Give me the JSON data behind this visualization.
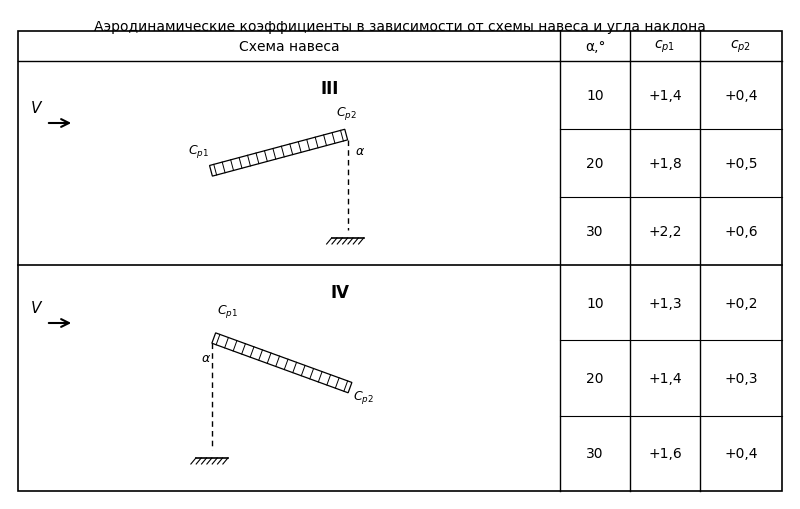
{
  "title": "Аэродинамические коэффициенты в зависимости от схемы навеса и угла наклона",
  "header": [
    "Схема навеса",
    "α,°",
    "c_p1",
    "c_p2"
  ],
  "section1_label": "III",
  "section1_rows": [
    [
      "10",
      "+1,4",
      "+0,4"
    ],
    [
      "20",
      "+1,8",
      "+0,5"
    ],
    [
      "30",
      "+2,2",
      "+0,6"
    ]
  ],
  "section2_label": "IV",
  "section2_rows": [
    [
      "10",
      "+1,3",
      "+0,2"
    ],
    [
      "20",
      "+1,4",
      "+0,3"
    ],
    [
      "30",
      "+1,6",
      "+0,4"
    ]
  ],
  "bg_color": "#ffffff",
  "text_color": "#000000",
  "line_color": "#000000",
  "title_fontsize": 10,
  "cell_fontsize": 10
}
